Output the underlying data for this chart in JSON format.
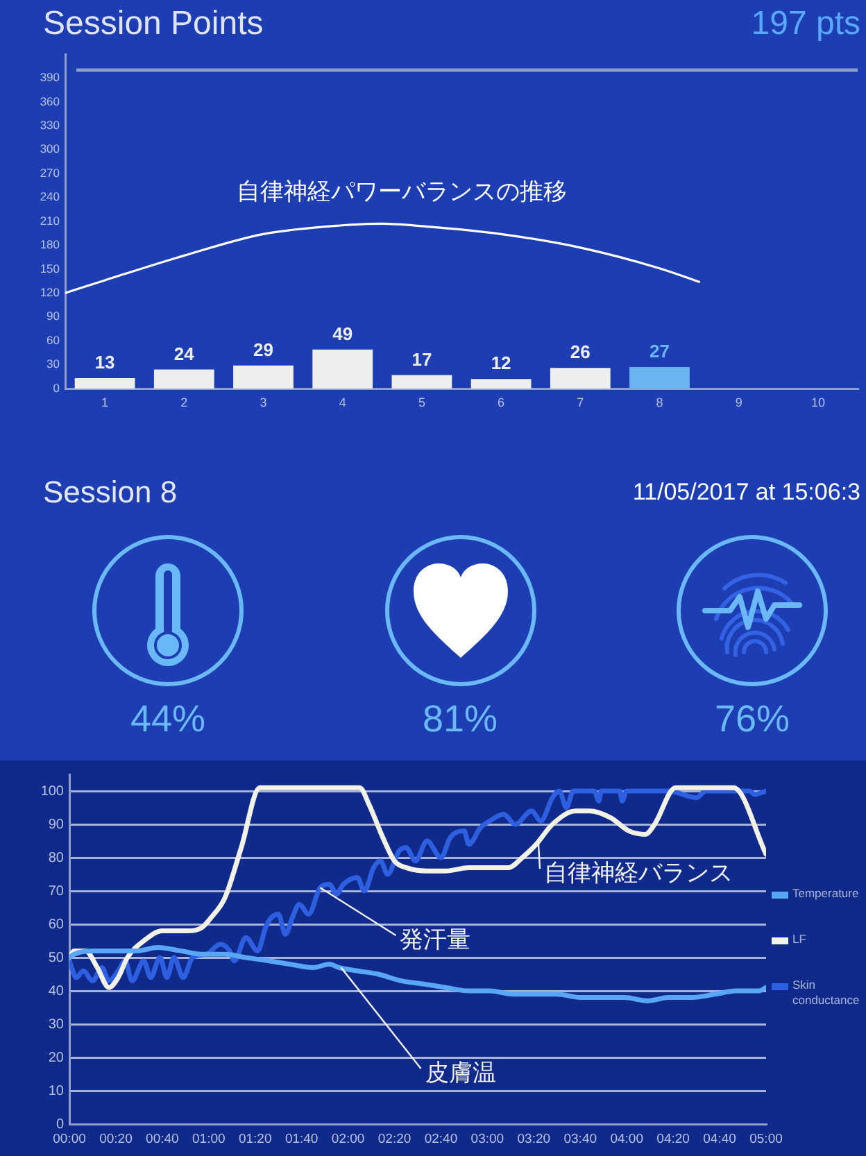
{
  "chart_data": [
    {
      "type": "bar",
      "title": "Session Points",
      "subtitle": "197 pts",
      "x": [
        1,
        2,
        3,
        4,
        5,
        6,
        7,
        8
      ],
      "series": [
        {
          "type": "bar",
          "values": [
            13,
            24,
            29,
            49,
            17,
            12,
            26,
            27
          ],
          "colors": [
            "#eeeeee",
            "#eeeeee",
            "#eeeeee",
            "#eeeeee",
            "#eeeeee",
            "#eeeeee",
            "#eeeeee",
            "#6ab4f2"
          ],
          "value_labels": [
            "13",
            "24",
            "29",
            "49",
            "17",
            "12",
            "26",
            "27"
          ]
        },
        {
          "type": "line",
          "name": "自律神経パワーバランスの推移",
          "color": "#ffffff",
          "x": [
            0.5,
            1,
            2,
            3,
            4,
            4.5,
            5,
            6,
            7,
            8,
            8.5
          ],
          "values": [
            120,
            136,
            167,
            194,
            205,
            207,
            204,
            194,
            177,
            151,
            134
          ]
        }
      ],
      "xlim": [
        0.5,
        10.5
      ],
      "xticks": [
        1,
        2,
        3,
        4,
        5,
        6,
        7,
        8,
        9,
        10
      ],
      "ylim": [
        0,
        420
      ],
      "yticks": [
        0,
        30,
        60,
        90,
        120,
        150,
        180,
        210,
        240,
        270,
        300,
        330,
        360,
        390
      ],
      "ref_lines": [
        {
          "axis": "y",
          "value": 400,
          "color": "#8e9ecb"
        }
      ]
    },
    {
      "type": "other",
      "title": "Session 8",
      "subtitle": "11/05/2017 at 15:06:3",
      "annotations": [
        "44%",
        "81%",
        "76%"
      ]
    },
    {
      "type": "line",
      "series": [
        {
          "name": "Temperature",
          "color": "#58a6f4",
          "x": [
            0,
            2,
            10,
            21,
            29,
            38,
            48,
            57,
            67,
            76,
            86,
            95,
            105,
            112,
            116,
            124,
            133,
            143,
            153,
            162,
            172,
            181,
            191,
            201,
            210,
            220,
            229,
            239,
            249,
            258,
            268,
            278,
            287,
            297,
            300
          ],
          "values": [
            50,
            51,
            52,
            52,
            52,
            53,
            52,
            51,
            51,
            50,
            49,
            48,
            47,
            48,
            47,
            46,
            45,
            43,
            42,
            41,
            40,
            40,
            39,
            39,
            39,
            38,
            38,
            38,
            37,
            38,
            38,
            39,
            40,
            40,
            41
          ]
        },
        {
          "name": "LF",
          "color": "#f2f2e6",
          "x": [
            0,
            2,
            7,
            12,
            17,
            21,
            25,
            32,
            40,
            51,
            57,
            61,
            67,
            74,
            82,
            125,
            129,
            135,
            140,
            145,
            154,
            162,
            172,
            189,
            195,
            201,
            208,
            218,
            224,
            233,
            241,
            248,
            252,
            261,
            286,
            300
          ],
          "values": [
            50,
            52,
            52,
            47,
            41,
            44,
            50,
            55,
            58,
            58,
            59,
            62,
            68,
            83,
            101,
            101,
            96,
            86,
            79,
            77,
            76,
            76,
            77,
            77,
            80,
            84,
            90,
            94,
            94,
            92,
            88,
            87,
            90,
            101,
            101,
            81
          ]
        },
        {
          "name": "Skin conductance",
          "color": "#2d5fe0",
          "x": [
            0,
            3,
            6,
            10,
            14,
            17,
            21,
            24,
            27,
            32,
            35,
            39,
            42,
            45,
            49,
            53,
            59,
            65,
            69,
            71,
            76,
            81,
            85,
            90,
            93,
            96,
            99,
            103,
            108,
            112,
            115,
            118,
            124,
            127,
            131,
            134,
            137,
            142,
            145,
            149,
            154,
            160,
            164,
            170,
            172,
            177,
            181,
            187,
            192,
            199,
            203,
            208,
            211,
            214,
            217,
            226,
            228,
            229,
            237,
            238,
            240,
            258,
            270,
            274,
            293,
            295,
            300
          ],
          "values": [
            49,
            44,
            46,
            43,
            47,
            43,
            46,
            49,
            43,
            49,
            44,
            50,
            44,
            50,
            44,
            50,
            51,
            54,
            52,
            49,
            56,
            52,
            60,
            63,
            57,
            62,
            66,
            63,
            71,
            72,
            69,
            72,
            74,
            70,
            77,
            79,
            75,
            82,
            83,
            79,
            85,
            80,
            86,
            88,
            84,
            89,
            91,
            93,
            90,
            94,
            91,
            98,
            100,
            95,
            100,
            100,
            97,
            100,
            100,
            97,
            100,
            100,
            98,
            100,
            100,
            99,
            100
          ]
        }
      ],
      "xlim": [
        0,
        300
      ],
      "xticks": [
        {
          "value": 0,
          "label": "00:00"
        },
        {
          "value": 20,
          "label": "00:20"
        },
        {
          "value": 40,
          "label": "00:40"
        },
        {
          "value": 60,
          "label": "01:00"
        },
        {
          "value": 80,
          "label": "01:20"
        },
        {
          "value": 100,
          "label": "01:40"
        },
        {
          "value": 120,
          "label": "02:00"
        },
        {
          "value": 140,
          "label": "02:20"
        },
        {
          "value": 160,
          "label": "02:40"
        },
        {
          "value": 180,
          "label": "03:00"
        },
        {
          "value": 200,
          "label": "03:20"
        },
        {
          "value": 220,
          "label": "03:40"
        },
        {
          "value": 240,
          "label": "04:00"
        },
        {
          "value": 260,
          "label": "04:20"
        },
        {
          "value": 280,
          "label": "04:40"
        },
        {
          "value": 300,
          "label": "05:00"
        }
      ],
      "ylim": [
        0,
        105
      ],
      "yticks": [
        0,
        10,
        20,
        30,
        40,
        50,
        60,
        70,
        80,
        90,
        100
      ],
      "grid": "y",
      "legend": "right",
      "annotations": [
        {
          "text": "自律神経バランス",
          "x": 202,
          "y": 84
        },
        {
          "text": "発汗量",
          "x": 108,
          "y": 71
        },
        {
          "text": "皮膚温",
          "x": 117,
          "y": 47
        }
      ]
    }
  ]
}
